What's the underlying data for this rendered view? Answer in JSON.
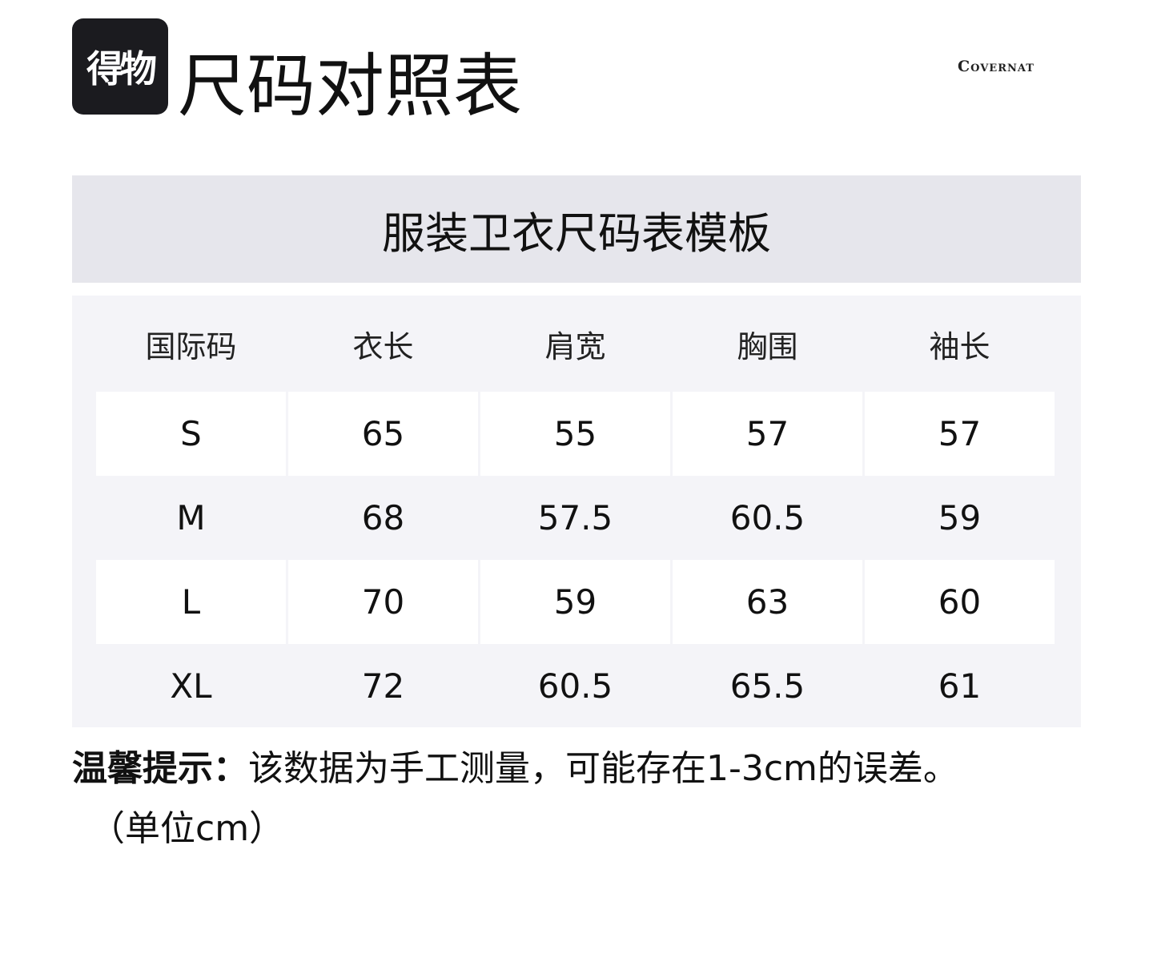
{
  "logo": {
    "text": "得物"
  },
  "title": "尺码对照表",
  "brand": "Covernat",
  "subtitle": "服装卫衣尺码表模板",
  "table": {
    "headers": [
      "国际码",
      "衣长",
      "肩宽",
      "胸围",
      "袖长"
    ],
    "rows": [
      [
        "S",
        "65",
        "55",
        "57",
        "57"
      ],
      [
        "M",
        "68",
        "57.5",
        "60.5",
        "59"
      ],
      [
        "L",
        "70",
        "59",
        "63",
        "60"
      ],
      [
        "XL",
        "72",
        "60.5",
        "65.5",
        "61"
      ]
    ]
  },
  "note": {
    "label": "温馨提示：",
    "text": "该数据为手工测量，可能存在1-3cm的误差。",
    "unit": "（单位cm）"
  }
}
